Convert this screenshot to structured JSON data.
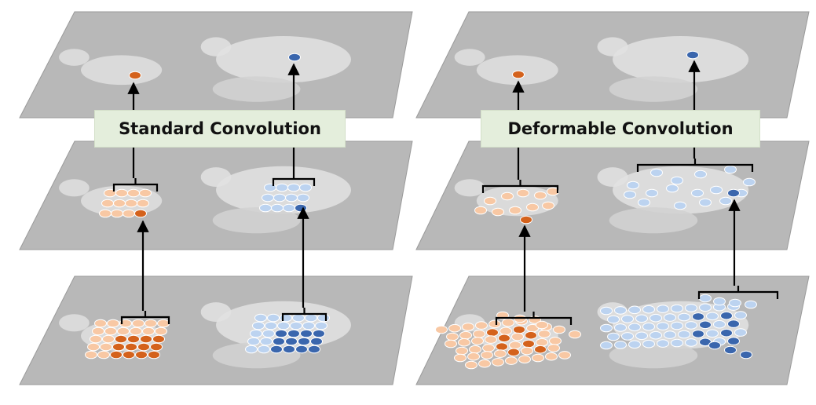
{
  "panels": [
    {
      "id": "standard",
      "caption": "Standard Convolution",
      "colors": {
        "warm_light": "#f8c8a4",
        "warm_dark": "#d4621c",
        "cool_light": "#bcd3f0",
        "cool_dark": "#3a66ad",
        "stroke": "#ffffff"
      },
      "layers": [
        "input-feature-map",
        "middle-feature-map",
        "output-feature-map"
      ]
    },
    {
      "id": "deformable",
      "caption": "Deformable Convolution",
      "colors": {
        "warm_light": "#f8c8a4",
        "warm_dark": "#d4621c",
        "cool_light": "#bcd3f0",
        "cool_dark": "#3a66ad",
        "stroke": "#ffffff"
      },
      "layers": [
        "input-feature-map",
        "middle-feature-map",
        "output-feature-map"
      ]
    }
  ],
  "background": {
    "plane_fill": "#b8b8b8",
    "plane_stroke": "#9a9a9a",
    "animal_fill": "#e2e2e2",
    "arrow_color": "#000000"
  }
}
